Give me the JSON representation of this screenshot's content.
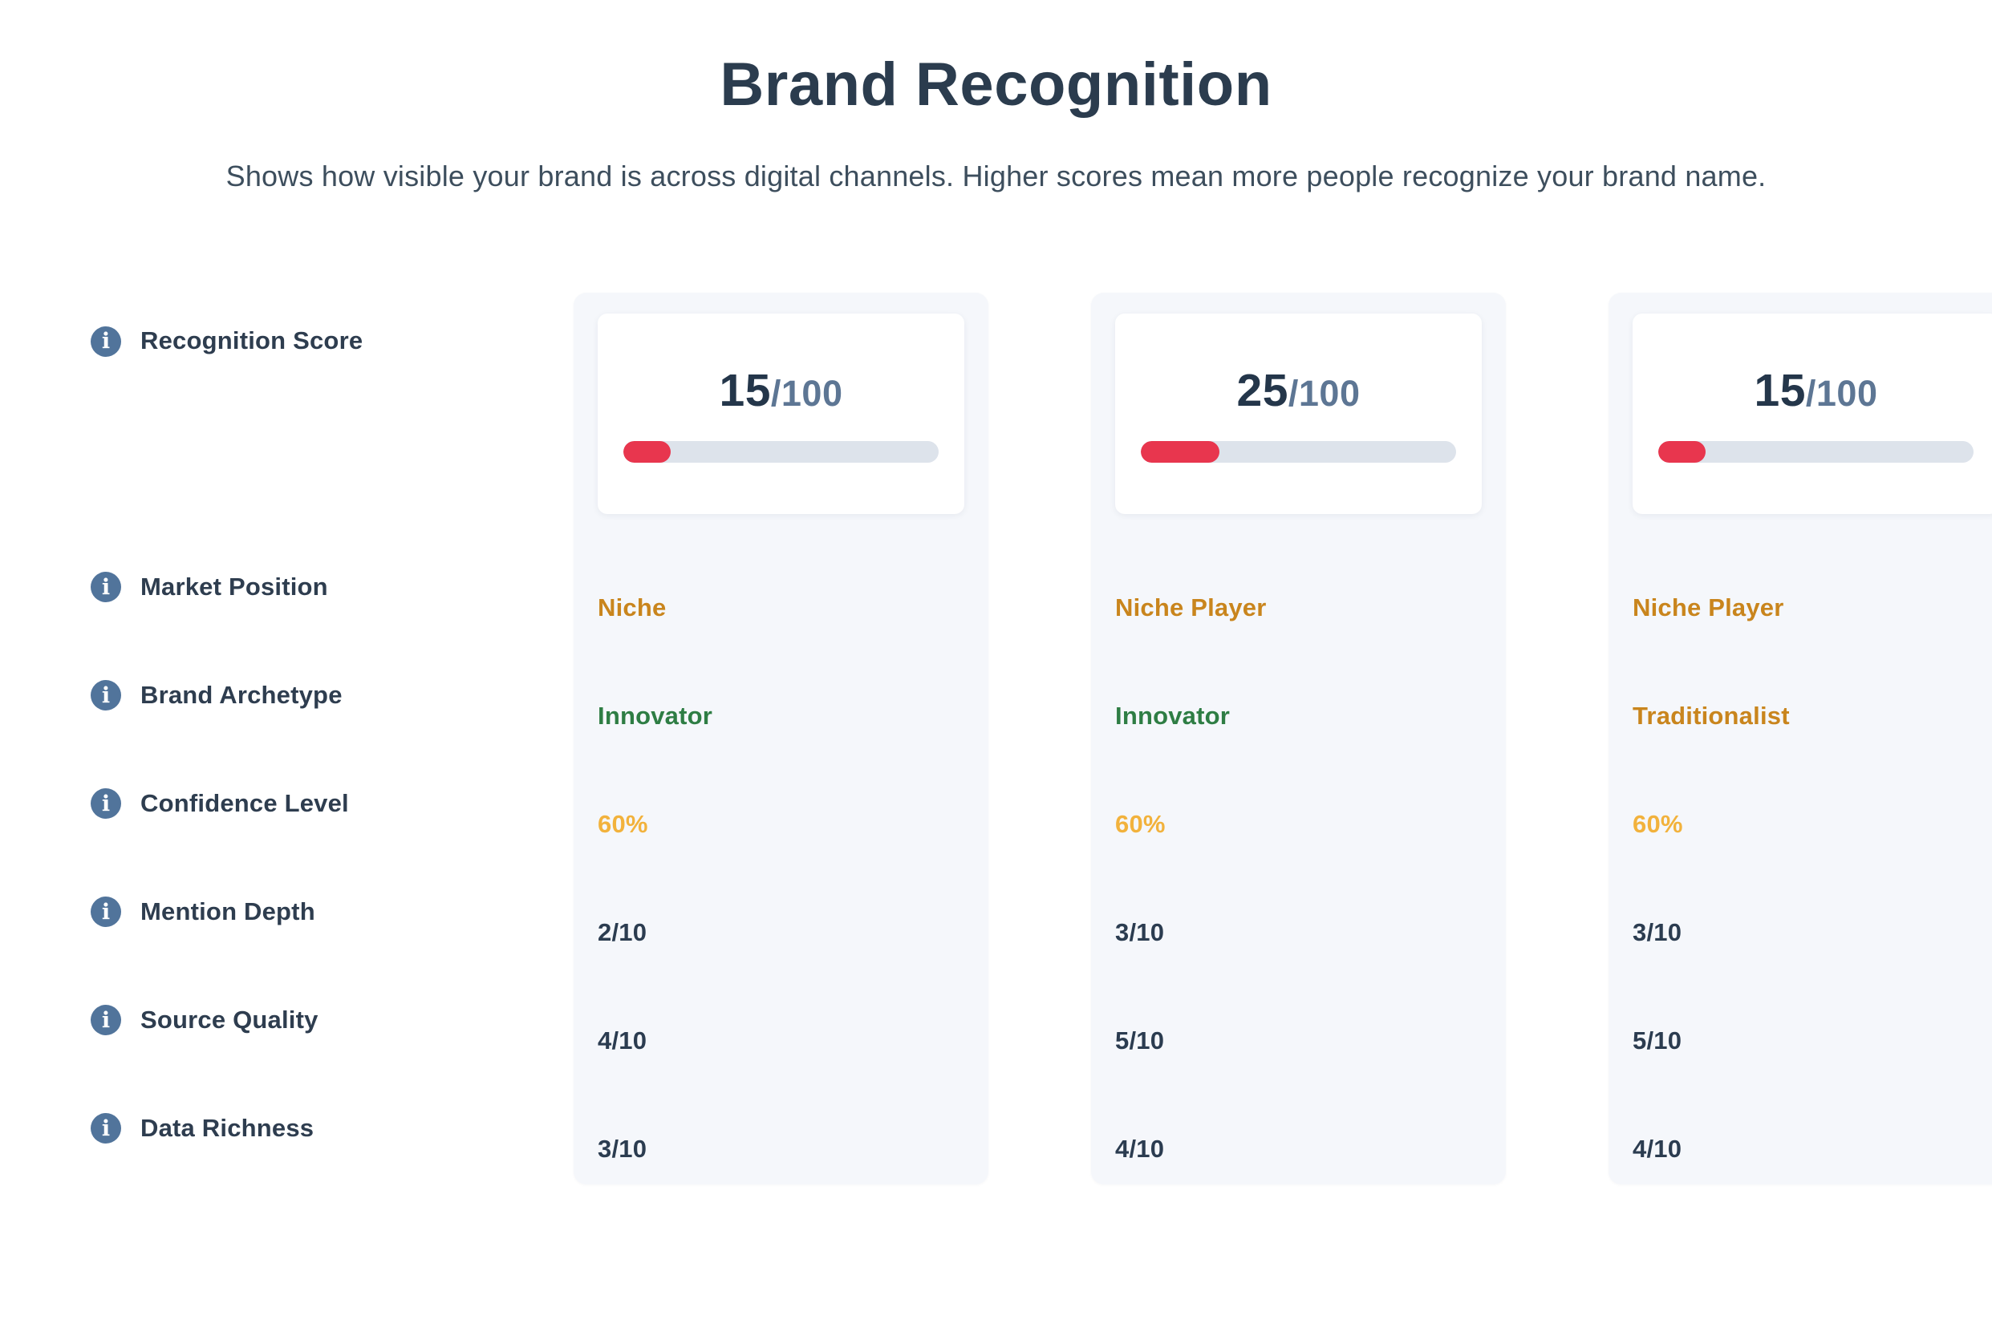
{
  "header": {
    "title": "Brand Recognition",
    "subtitle": "Shows how visible your brand is across digital channels. Higher scores mean more people recognize your brand name."
  },
  "icons": {
    "info_glyph": "i"
  },
  "colors": {
    "accent_red": "#e8364e",
    "track_gray": "#dde3eb",
    "card_bg": "#f5f7fb",
    "icon_blue": "#51749b",
    "dark_text": "#2b3c50",
    "slate_text": "#5d7694",
    "orange": "#c9851d",
    "green": "#2e7d44",
    "amber": "#f2b23c"
  },
  "row_labels": [
    {
      "label": "Recognition Score"
    },
    {
      "label": "Market Position"
    },
    {
      "label": "Brand Archetype"
    },
    {
      "label": "Confidence Level"
    },
    {
      "label": "Mention Depth"
    },
    {
      "label": "Source Quality"
    },
    {
      "label": "Data Richness"
    }
  ],
  "columns": [
    {
      "recognition_score": {
        "value": "15",
        "max": "/100",
        "percent": 15
      },
      "market_position": {
        "value": "Niche",
        "color": "#c9851d"
      },
      "brand_archetype": {
        "value": "Innovator",
        "color": "#2e7d44"
      },
      "confidence_level": {
        "value": "60%",
        "color": "#f2b23c"
      },
      "mention_depth": {
        "value": "2/10",
        "color": "#2b3c50"
      },
      "source_quality": {
        "value": "4/10",
        "color": "#2b3c50"
      },
      "data_richness": {
        "value": "3/10",
        "color": "#2b3c50"
      }
    },
    {
      "recognition_score": {
        "value": "25",
        "max": "/100",
        "percent": 25
      },
      "market_position": {
        "value": "Niche Player",
        "color": "#c9851d"
      },
      "brand_archetype": {
        "value": "Innovator",
        "color": "#2e7d44"
      },
      "confidence_level": {
        "value": "60%",
        "color": "#f2b23c"
      },
      "mention_depth": {
        "value": "3/10",
        "color": "#2b3c50"
      },
      "source_quality": {
        "value": "5/10",
        "color": "#2b3c50"
      },
      "data_richness": {
        "value": "4/10",
        "color": "#2b3c50"
      }
    },
    {
      "recognition_score": {
        "value": "15",
        "max": "/100",
        "percent": 15
      },
      "market_position": {
        "value": "Niche Player",
        "color": "#c9851d"
      },
      "brand_archetype": {
        "value": "Traditionalist",
        "color": "#c9851d"
      },
      "confidence_level": {
        "value": "60%",
        "color": "#f2b23c"
      },
      "mention_depth": {
        "value": "3/10",
        "color": "#2b3c50"
      },
      "source_quality": {
        "value": "5/10",
        "color": "#2b3c50"
      },
      "data_richness": {
        "value": "4/10",
        "color": "#2b3c50"
      }
    }
  ]
}
